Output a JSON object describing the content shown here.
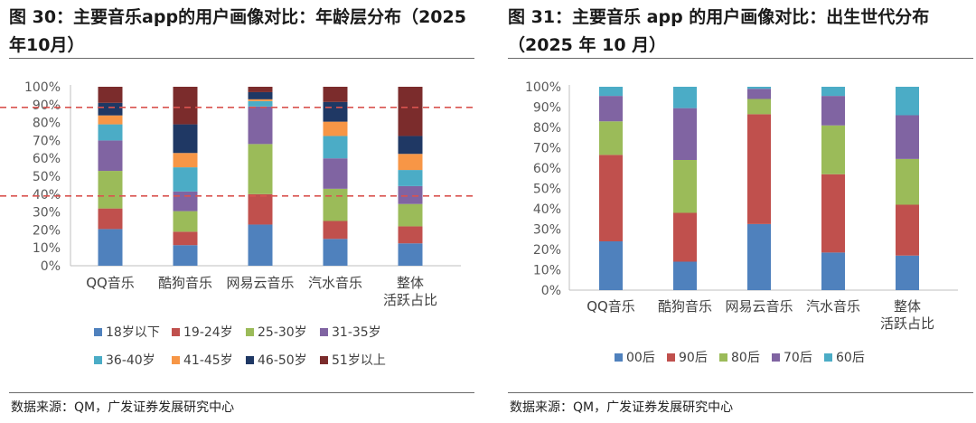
{
  "panels": [
    {
      "title": "图 30：主要音乐app的用户画像对比：年龄层分布（2025年10月）",
      "source": "数据来源：QM，广发证券发展研究中心"
    },
    {
      "title": "图 31：主要音乐 app 的用户画像对比：出生世代分布（2025 年 10 月）",
      "source": "数据来源：QM，广发证券发展研究中心"
    }
  ],
  "chart_data": [
    {
      "type": "bar",
      "stacked": true,
      "title": "图 30：主要音乐app的用户画像对比：年龄层分布（2025年10月）",
      "categories": [
        "QQ音乐",
        "酷狗音乐",
        "网易云音乐",
        "汽水音乐",
        "整体 活跃占比"
      ],
      "y_ticks": [
        "0%",
        "10%",
        "20%",
        "30%",
        "40%",
        "50%",
        "60%",
        "70%",
        "80%",
        "90%",
        "100%"
      ],
      "ylim": [
        0,
        100
      ],
      "grid": false,
      "legend_position": "bottom",
      "reference_lines": [
        88.5,
        39
      ],
      "series": [
        {
          "name": "18岁以下",
          "color": "#4f81bd",
          "values": [
            20.5,
            11.5,
            23,
            15,
            12.5
          ]
        },
        {
          "name": "19-24岁",
          "color": "#c0504d",
          "values": [
            11.5,
            7.5,
            17,
            10,
            9.5
          ]
        },
        {
          "name": "25-30岁",
          "color": "#9bbb59",
          "values": [
            21,
            11.5,
            28,
            18,
            12.5
          ]
        },
        {
          "name": "31-35岁",
          "color": "#8064a2",
          "values": [
            17,
            11,
            21,
            17,
            10
          ]
        },
        {
          "name": "36-40岁",
          "color": "#4bacc6",
          "values": [
            9,
            13.5,
            3,
            12.5,
            9
          ]
        },
        {
          "name": "41-45岁",
          "color": "#f79646",
          "values": [
            5,
            8,
            1,
            8,
            9
          ]
        },
        {
          "name": "46-50岁",
          "color": "#1f3864",
          "values": [
            7,
            16,
            4,
            11,
            10
          ]
        },
        {
          "name": "51岁以上",
          "color": "#7b2c2c",
          "values": [
            9,
            21,
            3,
            8.5,
            27.5
          ]
        }
      ]
    },
    {
      "type": "bar",
      "stacked": true,
      "title": "图 31：主要音乐 app 的用户画像对比：出生世代分布（2025 年 10 月）",
      "categories": [
        "QQ音乐",
        "酷狗音乐",
        "网易云音乐",
        "汽水音乐",
        "整体 活跃占比"
      ],
      "y_ticks": [
        "0%",
        "10%",
        "20%",
        "30%",
        "40%",
        "50%",
        "60%",
        "70%",
        "80%",
        "90%",
        "100%"
      ],
      "ylim": [
        0,
        100
      ],
      "grid": false,
      "legend_position": "bottom",
      "series": [
        {
          "name": "00后",
          "color": "#4f81bd",
          "values": [
            24,
            14,
            32.5,
            18.5,
            17
          ]
        },
        {
          "name": "90后",
          "color": "#c0504d",
          "values": [
            42.5,
            24,
            54,
            38.5,
            25
          ]
        },
        {
          "name": "80后",
          "color": "#9bbb59",
          "values": [
            16.5,
            26,
            7.5,
            24,
            22.5
          ]
        },
        {
          "name": "70后",
          "color": "#8064a2",
          "values": [
            12.5,
            25.5,
            5,
            14.5,
            21.5
          ]
        },
        {
          "name": "60后",
          "color": "#4bacc6",
          "values": [
            4.5,
            10.5,
            1,
            4.5,
            14
          ]
        }
      ]
    }
  ]
}
